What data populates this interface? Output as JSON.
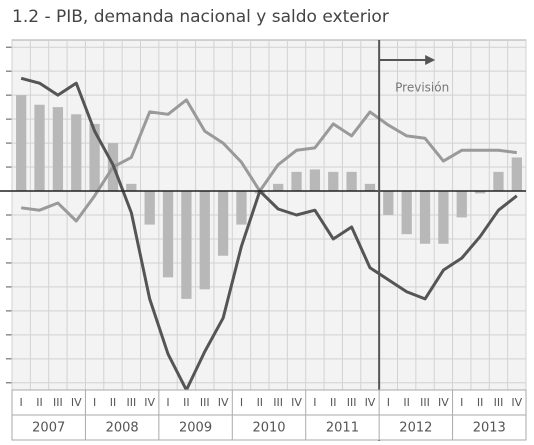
{
  "chart_data": {
    "type": "bar",
    "title": "1.2 - PIB, demanda nacional y saldo exterior",
    "categories": [
      "I",
      "II",
      "III",
      "IV",
      "I",
      "II",
      "III",
      "IV",
      "I",
      "II",
      "III",
      "IV",
      "I",
      "II",
      "III",
      "IV",
      "I",
      "II",
      "III",
      "IV",
      "I",
      "II",
      "III",
      "IV",
      "I",
      "II",
      "III",
      "IV"
    ],
    "years": [
      "2007",
      "2008",
      "2009",
      "2010",
      "2011",
      "2012",
      "2013"
    ],
    "series": [
      {
        "type": "bar",
        "color": "#b8b8b8",
        "values": [
          4.0,
          3.6,
          3.5,
          3.2,
          2.8,
          2.0,
          0.3,
          -1.4,
          -3.6,
          -4.5,
          -4.1,
          -2.7,
          -1.4,
          -0.1,
          0.3,
          0.8,
          0.9,
          0.8,
          0.8,
          0.3,
          -1.0,
          -1.8,
          -2.2,
          -2.2,
          -1.1,
          -0.1,
          0.8,
          1.4
        ]
      },
      {
        "type": "line",
        "color": "#9a9a9a",
        "values": [
          -0.7,
          -0.8,
          -0.5,
          -1.25,
          -0.2,
          1.0,
          1.4,
          3.3,
          3.2,
          3.8,
          2.5,
          2.0,
          1.2,
          0,
          1.1,
          1.7,
          1.8,
          2.8,
          2.3,
          3.3,
          2.75,
          2.3,
          2.2,
          1.25,
          1.7,
          1.7,
          1.7,
          1.6
        ]
      },
      {
        "type": "line",
        "color": "#555555",
        "values": [
          4.7,
          4.5,
          4.0,
          4.5,
          2.5,
          1.1,
          -0.9,
          -4.5,
          -6.8,
          -8.3,
          -6.7,
          -5.3,
          -2.3,
          0,
          -0.75,
          -1.0,
          -0.8,
          -2.0,
          -1.5,
          -3.2,
          -3.7,
          -4.2,
          -4.5,
          -3.3,
          -2.8,
          -1.9,
          -0.8,
          -0.2
        ]
      }
    ],
    "ylim": [
      -8.3,
      6.3
    ],
    "yticks": [
      -8,
      -7,
      -6,
      -5,
      -4,
      -3,
      -2,
      -1,
      0,
      1,
      2,
      3,
      4,
      5,
      6
    ],
    "grid": true,
    "annotations": [
      {
        "text": "Previsión",
        "x": 20
      }
    ]
  }
}
